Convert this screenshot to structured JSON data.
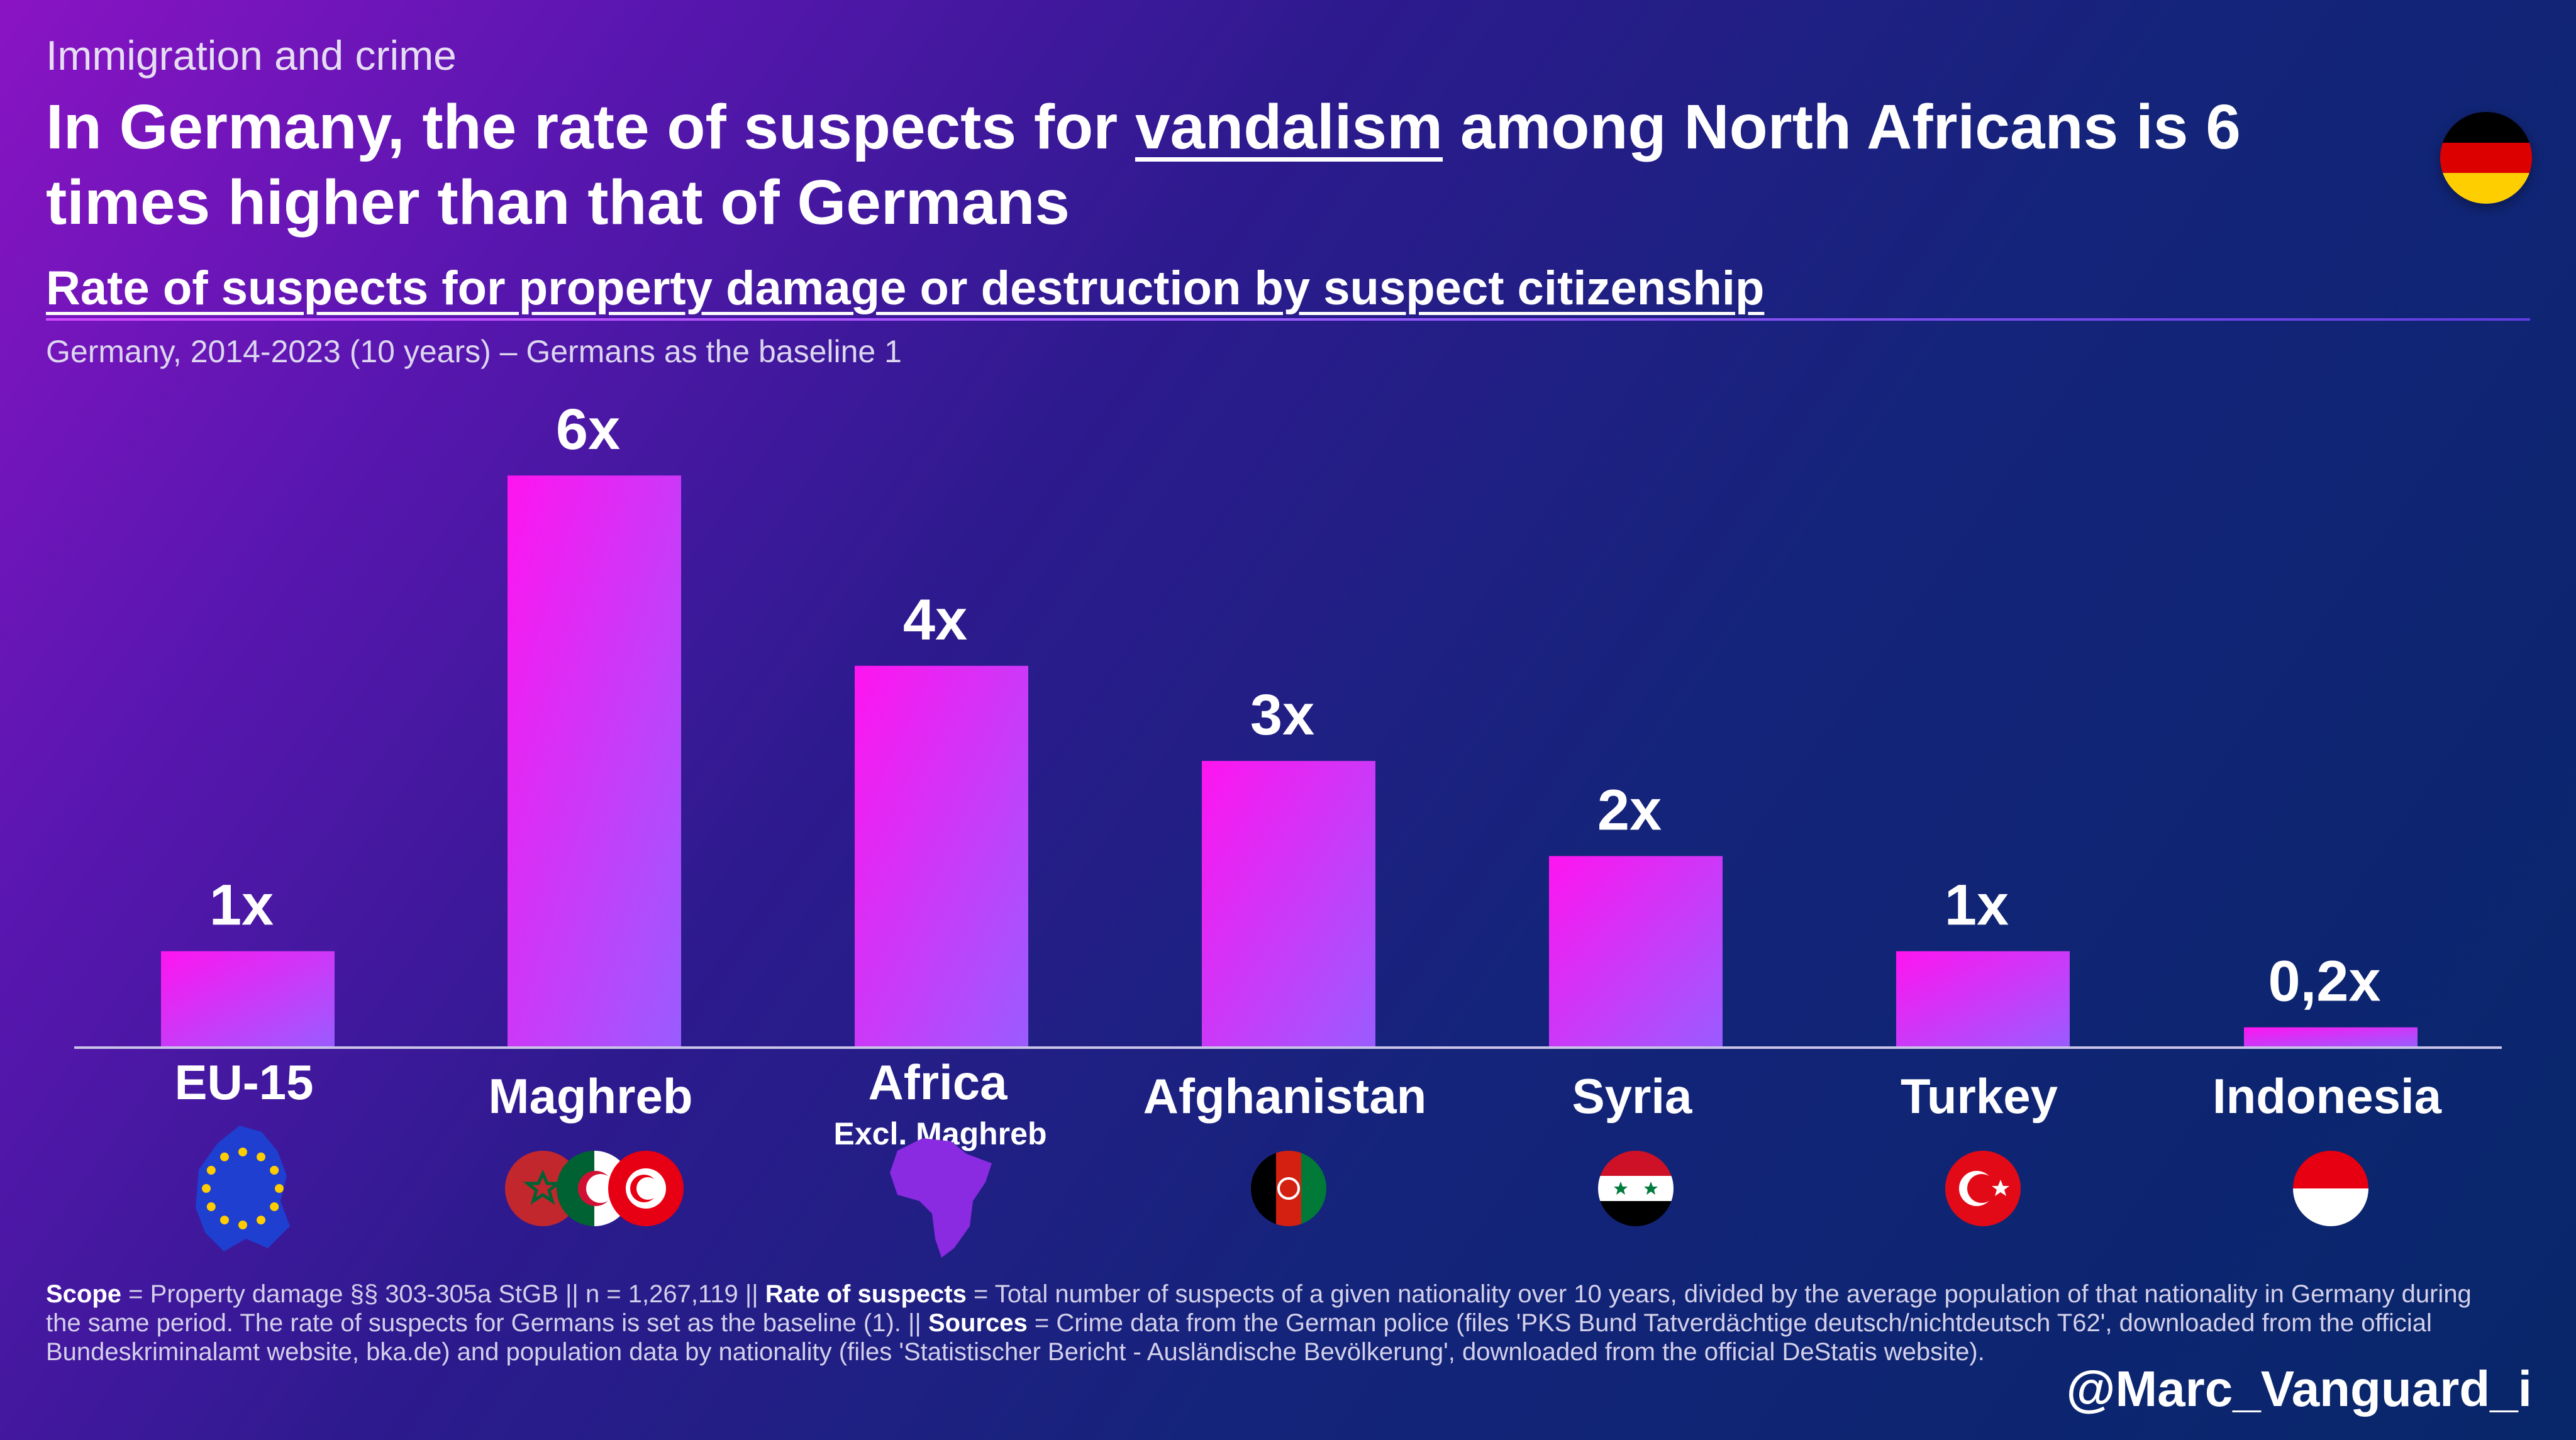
{
  "header": {
    "kicker": "Immigration and crime",
    "headline_pre": "In Germany, the rate of suspects for ",
    "headline_highlight": "vandalism",
    "headline_post": " among North Africans is 6 times higher than that of Germans",
    "subtitle": "Rate of suspects for property damage or destruction by suspect citizenship",
    "caption": "Germany, 2014-2023 (10 years) – Germans as the baseline 1"
  },
  "chart_data": {
    "type": "bar",
    "categories": [
      "EU-15",
      "Maghreb",
      "Africa",
      "Afghanistan",
      "Syria",
      "Turkey",
      "Indonesia"
    ],
    "category_sublabels": [
      "",
      "",
      "Excl. Maghreb",
      "",
      "",
      "",
      ""
    ],
    "values": [
      1.0,
      6.0,
      4.0,
      3.0,
      2.0,
      1.0,
      0.2
    ],
    "data_labels": [
      "1x",
      "6x",
      "4x",
      "3x",
      "2x",
      "1x",
      "0,2x"
    ],
    "flag_icons": [
      "eu-map-icon",
      "maghreb-flags-icon",
      "africa-map-icon",
      "afghanistan-flag-icon",
      "syria-flag-icon",
      "turkey-flag-icon",
      "indonesia-flag-icon"
    ],
    "ylim": [
      0,
      6
    ],
    "grid": false,
    "bar_colors": {
      "top": "#ff14f0",
      "bottom": "#9a5cff"
    }
  },
  "footnote": {
    "scope_label": "Scope",
    "scope_text": " = Property damage §§ 303-305a StGB || n = 1,267,119 || ",
    "rate_label": "Rate of suspects",
    "rate_text": " = Total number of suspects of a given nationality over 10 years, divided by the average population of that nationality in Germany during the same period. The rate of suspects for Germans is set as the baseline (1). || ",
    "sources_label": "Sources",
    "sources_text": " = Crime data from the German police (files 'PKS Bund Tatverdächtige deutsch/nichtdeutsch T62', downloaded from the official Bundeskriminalamt website, bka.de) and population data by nationality (files 'Statistischer Bericht - Ausländische Bevölkerung', downloaded from the official DeStatis website)."
  },
  "handle": "@Marc_Vanguard_i",
  "colors": {
    "flag_de": [
      "#000000",
      "#dd0000",
      "#ffce00"
    ],
    "africa_silhouette": "#8a2be2",
    "eu_blue": "#1e3fd0",
    "eu_star": "#ffcc00"
  }
}
